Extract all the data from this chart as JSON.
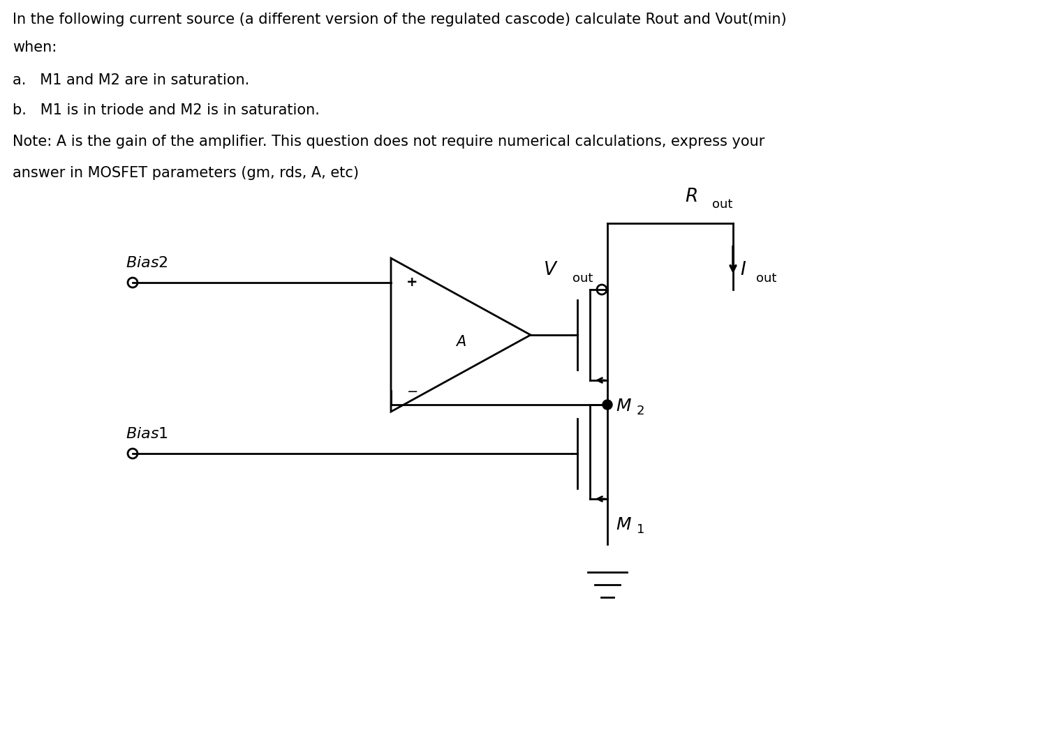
{
  "title_line1": "In the following current source (a different version of the regulated cascode) calculate Rout and Vout(min)",
  "title_line2": "when:",
  "item_a": "a.   M1 and M2 are in saturation.",
  "item_b": "b.   M1 is in triode and M2 is in saturation.",
  "note": "Note: A is the gain of the amplifier. This question does not require numerical calculations, express your",
  "note2": "answer in MOSFET parameters (gm, rds, A, etc)",
  "text_color": "#000000",
  "bg_color": "#ffffff",
  "fig_width": 15.14,
  "fig_height": 10.72,
  "dpi": 100
}
